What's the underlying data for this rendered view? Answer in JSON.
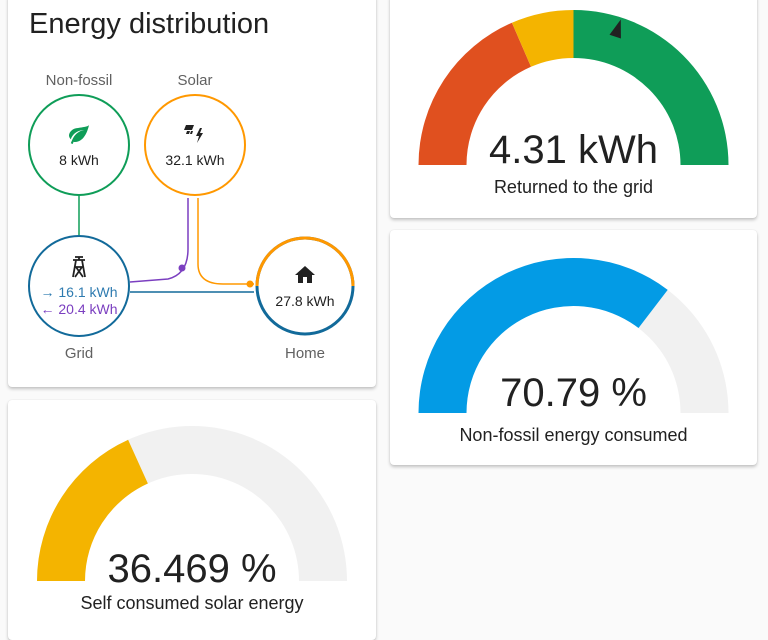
{
  "distribution": {
    "title": "Energy distribution",
    "nonfossil": {
      "label": "Non-fossil",
      "value": "8 kWh"
    },
    "solar": {
      "label": "Solar",
      "value": "32.1 kWh"
    },
    "grid": {
      "label": "Grid",
      "in_value": "→ 16.1 kWh",
      "out_value": "← 20.4 kWh"
    },
    "home": {
      "label": "Home",
      "value": "27.8 kWh"
    }
  },
  "gauges": {
    "grid_return": {
      "value": "4.31 kWh",
      "label": "Returned to the grid",
      "needle_fraction": 0.6
    },
    "nonfossil": {
      "value": "70.79 %",
      "label": "Non-fossil energy consumed",
      "fill_fraction": 0.7079
    },
    "solar_self": {
      "value": "36.469 %",
      "label": "Self consumed solar energy",
      "fill_fraction": 0.36469
    }
  },
  "colors": {
    "red": "#e0501f",
    "yellow": "#f4b400",
    "green": "#0f9d58",
    "blue": "#039be5",
    "track": "#f1f1f1",
    "grid_circle": "#126a9a",
    "solar": "#ff9800",
    "grid_out": "#7b3fc0"
  }
}
